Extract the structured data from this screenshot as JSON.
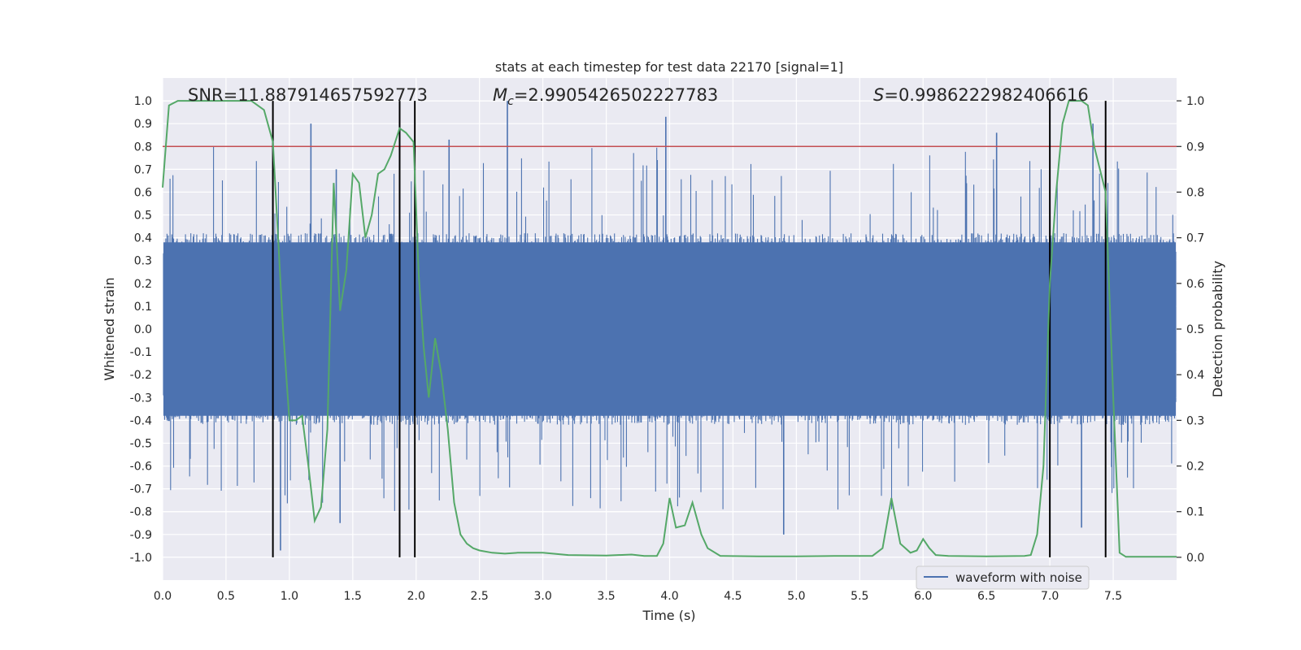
{
  "chart_data": {
    "type": "line",
    "title": "stats at each timestep for test data 22170 [signal=1]",
    "xlabel": "Time (s)",
    "ylabel": "Whitened strain",
    "ylabel_right": "Detection probability",
    "xlim": [
      0.0,
      8.0
    ],
    "ylim": [
      -1.1,
      1.1
    ],
    "ylim_right": [
      -0.05,
      1.05
    ],
    "x_ticks": [
      "0.0",
      "0.5",
      "1.0",
      "1.5",
      "2.0",
      "2.5",
      "3.0",
      "3.5",
      "4.0",
      "4.5",
      "5.0",
      "5.5",
      "6.0",
      "6.5",
      "7.0",
      "7.5"
    ],
    "y_ticks": [
      "-1.0",
      "-0.9",
      "-0.8",
      "-0.7",
      "-0.6",
      "-0.5",
      "-0.4",
      "-0.3",
      "-0.2",
      "-0.1",
      "0.0",
      "0.1",
      "0.2",
      "0.3",
      "0.4",
      "0.5",
      "0.6",
      "0.7",
      "0.8",
      "0.9",
      "1.0"
    ],
    "y_ticks_right": [
      "0.0",
      "0.1",
      "0.2",
      "0.3",
      "0.4",
      "0.5",
      "0.6",
      "0.7",
      "0.8",
      "0.9",
      "1.0"
    ],
    "annotations": {
      "snr": "SNR=11.887914657592773",
      "mc_symbol": "M",
      "mc_sub": "c",
      "mc_value": "=2.9905426502227783",
      "s_symbol": "S",
      "s_value": "=0.9986222982406616"
    },
    "threshold": {
      "value": 0.9,
      "axis": "right",
      "color": "#c44e52"
    },
    "vertical_lines": [
      0.87,
      1.87,
      1.99,
      7.0,
      7.44
    ],
    "series": [
      {
        "name": "waveform with noise",
        "color": "#4c72b0",
        "axis": "left",
        "description": "dense noisy whitened strain trace, core band about -0.4 to 0.4 with spikes",
        "spikes": [
          {
            "x": 1.17,
            "y": 0.9
          },
          {
            "x": 2.72,
            "y": 1.0
          },
          {
            "x": 3.97,
            "y": 0.93
          },
          {
            "x": 2.26,
            "y": 0.83
          },
          {
            "x": 7.34,
            "y": 0.9
          },
          {
            "x": 6.58,
            "y": 0.86
          },
          {
            "x": 1.37,
            "y": 0.7
          },
          {
            "x": 0.93,
            "y": -0.97
          },
          {
            "x": 4.9,
            "y": -0.9
          },
          {
            "x": 7.25,
            "y": -0.87
          },
          {
            "x": 1.4,
            "y": -0.85
          }
        ]
      },
      {
        "name": "detection probability",
        "color": "#55a868",
        "axis": "right",
        "x": [
          0.0,
          0.05,
          0.12,
          0.3,
          0.5,
          0.7,
          0.8,
          0.87,
          0.95,
          1.0,
          1.05,
          1.1,
          1.15,
          1.2,
          1.25,
          1.3,
          1.35,
          1.4,
          1.45,
          1.5,
          1.55,
          1.6,
          1.65,
          1.7,
          1.75,
          1.8,
          1.87,
          1.92,
          1.98,
          2.02,
          2.06,
          2.1,
          2.15,
          2.2,
          2.25,
          2.3,
          2.35,
          2.4,
          2.45,
          2.5,
          2.6,
          2.7,
          2.8,
          2.9,
          3.0,
          3.2,
          3.5,
          3.7,
          3.8,
          3.9,
          3.95,
          4.0,
          4.05,
          4.12,
          4.18,
          4.25,
          4.3,
          4.4,
          4.7,
          5.0,
          5.3,
          5.6,
          5.68,
          5.75,
          5.82,
          5.9,
          5.95,
          6.0,
          6.05,
          6.1,
          6.2,
          6.5,
          6.8,
          6.85,
          6.9,
          6.95,
          7.0,
          7.05,
          7.1,
          7.15,
          7.2,
          7.25,
          7.3,
          7.35,
          7.44,
          7.5,
          7.55,
          7.6,
          7.65,
          7.7,
          7.8,
          8.0
        ],
        "y": [
          0.81,
          0.99,
          1.0,
          1.0,
          1.0,
          1.0,
          0.98,
          0.91,
          0.5,
          0.3,
          0.3,
          0.31,
          0.2,
          0.08,
          0.11,
          0.28,
          0.82,
          0.54,
          0.63,
          0.84,
          0.82,
          0.7,
          0.75,
          0.84,
          0.85,
          0.88,
          0.94,
          0.93,
          0.91,
          0.62,
          0.46,
          0.35,
          0.48,
          0.4,
          0.28,
          0.12,
          0.05,
          0.03,
          0.02,
          0.015,
          0.01,
          0.008,
          0.01,
          0.01,
          0.01,
          0.005,
          0.004,
          0.006,
          0.003,
          0.003,
          0.03,
          0.13,
          0.065,
          0.07,
          0.12,
          0.05,
          0.02,
          0.003,
          0.002,
          0.002,
          0.003,
          0.003,
          0.02,
          0.13,
          0.03,
          0.01,
          0.015,
          0.04,
          0.02,
          0.005,
          0.003,
          0.002,
          0.003,
          0.005,
          0.05,
          0.2,
          0.6,
          0.8,
          0.95,
          1.0,
          1.0,
          1.0,
          0.99,
          0.9,
          0.8,
          0.35,
          0.01,
          0.001,
          0.001,
          0.001,
          0.001,
          0.001
        ]
      }
    ],
    "legend": {
      "label": "waveform with noise",
      "placement": "lower-right"
    }
  }
}
